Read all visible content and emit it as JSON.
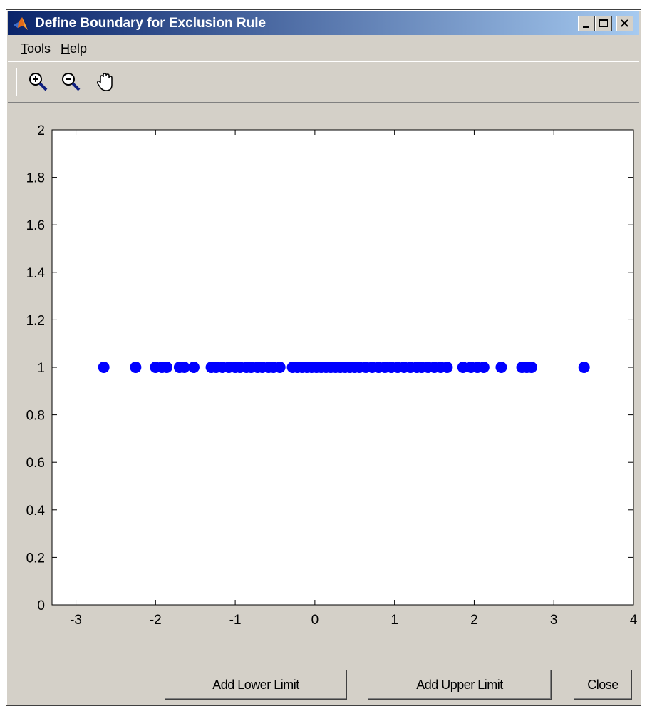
{
  "window": {
    "title": "Define Boundary for Exclusion Rule",
    "app_icon": "matlab-icon"
  },
  "title_buttons": [
    "minimize-icon",
    "maximize-icon",
    "close-icon"
  ],
  "menu": [
    {
      "label": "Tools",
      "accel": "T"
    },
    {
      "label": "Help",
      "accel": "H"
    }
  ],
  "toolbar": {
    "tools": [
      "zoom-in-icon",
      "zoom-out-icon",
      "pan-hand-icon"
    ]
  },
  "buttons": {
    "add_lower": "Add Lower Limit",
    "add_upper": "Add Upper Limit",
    "close": "Close"
  },
  "colors": {
    "marker": "#0000ff",
    "face": "#d4d0c8",
    "title_start": "#0a246a",
    "title_end": "#a6caf0"
  },
  "chart_data": {
    "type": "scatter",
    "title": "",
    "xlabel": "",
    "ylabel": "",
    "xlim": [
      -3.3,
      4
    ],
    "ylim": [
      0,
      2
    ],
    "xticks": [
      "-3",
      "-2",
      "-1",
      "0",
      "1",
      "2",
      "3",
      "4"
    ],
    "yticks": [
      "0",
      "0.2",
      "0.4",
      "0.6",
      "0.8",
      "1",
      "1.2",
      "1.4",
      "1.6",
      "1.8",
      "2"
    ],
    "grid": false,
    "x": [
      -2.65,
      -2.25,
      -2.0,
      -1.92,
      -1.86,
      -1.7,
      -1.64,
      -1.52,
      -1.3,
      -1.24,
      -1.16,
      -1.08,
      -1.0,
      -0.94,
      -0.86,
      -0.8,
      -0.72,
      -0.66,
      -0.58,
      -0.52,
      -0.44,
      -0.28,
      -0.22,
      -0.16,
      -0.1,
      -0.04,
      0.02,
      0.08,
      0.14,
      0.2,
      0.26,
      0.32,
      0.38,
      0.44,
      0.5,
      0.56,
      0.64,
      0.72,
      0.8,
      0.88,
      0.96,
      1.04,
      1.12,
      1.2,
      1.28,
      1.34,
      1.42,
      1.5,
      1.58,
      1.66,
      1.86,
      1.96,
      2.04,
      2.12,
      2.34,
      2.6,
      2.66,
      2.72,
      3.38
    ],
    "y": [
      1,
      1,
      1,
      1,
      1,
      1,
      1,
      1,
      1,
      1,
      1,
      1,
      1,
      1,
      1,
      1,
      1,
      1,
      1,
      1,
      1,
      1,
      1,
      1,
      1,
      1,
      1,
      1,
      1,
      1,
      1,
      1,
      1,
      1,
      1,
      1,
      1,
      1,
      1,
      1,
      1,
      1,
      1,
      1,
      1,
      1,
      1,
      1,
      1,
      1,
      1,
      1,
      1,
      1,
      1,
      1,
      1,
      1,
      1
    ]
  }
}
